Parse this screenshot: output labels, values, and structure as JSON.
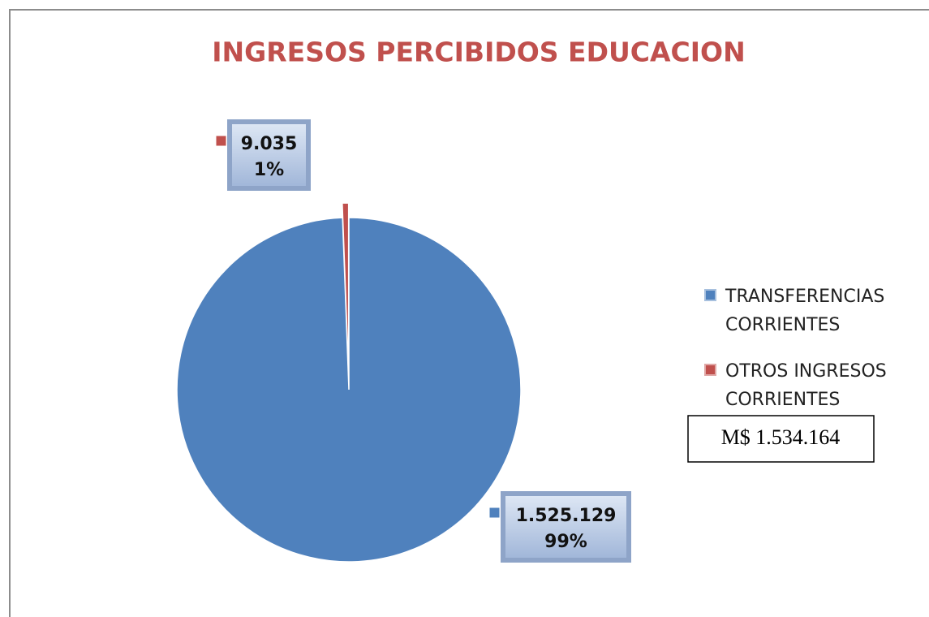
{
  "chart_data": {
    "type": "pie",
    "title": "INGRESOS PERCIBIDOS EDUCACION",
    "categories": [
      "TRANSFERENCIAS CORRIENTES",
      "OTROS INGRESOS CORRIENTES"
    ],
    "values": [
      1525129,
      9035
    ],
    "value_labels": [
      "1.525.129",
      "9.035"
    ],
    "percent_labels": [
      "99%",
      "1%"
    ],
    "colors": [
      "#4f81bd",
      "#c0504d"
    ],
    "legend": "right",
    "annotation": "M$ 1.534.164"
  }
}
